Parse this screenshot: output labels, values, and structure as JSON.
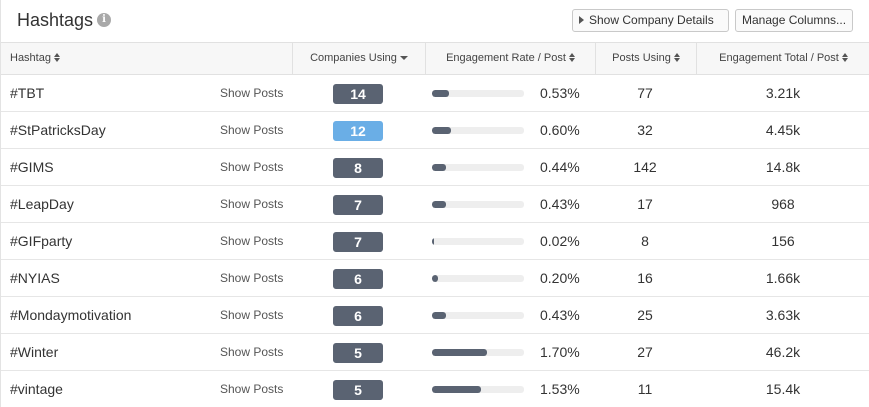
{
  "header": {
    "title": "Hashtags",
    "info_icon": "info-icon",
    "show_company_details": "Show Company Details",
    "manage_columns": "Manage Columns..."
  },
  "columns": [
    {
      "label": "Hashtag",
      "icon": "sort-icon"
    },
    {
      "label": "Companies Using",
      "icon": "caret-down-icon"
    },
    {
      "label": "Engagement Rate / Post",
      "icon": "sort-icon"
    },
    {
      "label": "Posts Using",
      "icon": "sort-icon"
    },
    {
      "label": "Engagement Total / Post",
      "icon": "sort-icon"
    }
  ],
  "show_posts_label": "Show Posts",
  "colors": {
    "badge": "#5a6372",
    "badge_highlight": "#6aaee6",
    "bar_fill": "#5a6372",
    "bar_track": "#eeeeee"
  },
  "rows": [
    {
      "hashtag": "#TBT",
      "companies": "14",
      "highlight": false,
      "rate": "0.53%",
      "rate_value": 0.53,
      "posts": "77",
      "total": "3.21k"
    },
    {
      "hashtag": "#StPatricksDay",
      "companies": "12",
      "highlight": true,
      "rate": "0.60%",
      "rate_value": 0.6,
      "posts": "32",
      "total": "4.45k"
    },
    {
      "hashtag": "#GIMS",
      "companies": "8",
      "highlight": false,
      "rate": "0.44%",
      "rate_value": 0.44,
      "posts": "142",
      "total": "14.8k"
    },
    {
      "hashtag": "#LeapDay",
      "companies": "7",
      "highlight": false,
      "rate": "0.43%",
      "rate_value": 0.43,
      "posts": "17",
      "total": "968"
    },
    {
      "hashtag": "#GIFparty",
      "companies": "7",
      "highlight": false,
      "rate": "0.02%",
      "rate_value": 0.02,
      "posts": "8",
      "total": "156"
    },
    {
      "hashtag": "#NYIAS",
      "companies": "6",
      "highlight": false,
      "rate": "0.20%",
      "rate_value": 0.2,
      "posts": "16",
      "total": "1.66k"
    },
    {
      "hashtag": "#Mondaymotivation",
      "companies": "6",
      "highlight": false,
      "rate": "0.43%",
      "rate_value": 0.43,
      "posts": "25",
      "total": "3.63k"
    },
    {
      "hashtag": "#Winter",
      "companies": "5",
      "highlight": false,
      "rate": "1.70%",
      "rate_value": 1.7,
      "posts": "27",
      "total": "46.2k"
    },
    {
      "hashtag": "#vintage",
      "companies": "5",
      "highlight": false,
      "rate": "1.53%",
      "rate_value": 1.53,
      "posts": "11",
      "total": "15.4k"
    }
  ]
}
